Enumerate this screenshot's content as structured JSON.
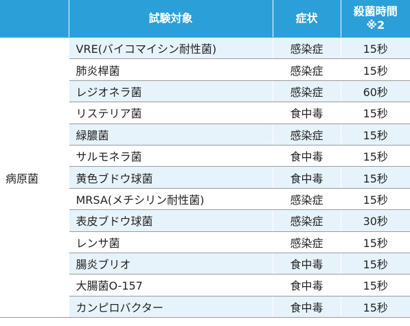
{
  "header": {
    "category": "",
    "target": "試験対象",
    "symptom": "症状",
    "time_line1": "殺菌時間",
    "time_line2": "※2"
  },
  "category_label": "病原菌",
  "rows": [
    {
      "name": "VRE(バイコマイシン耐性菌)",
      "symptom": "感染症",
      "time": "15秒"
    },
    {
      "name": "肺炎桿菌",
      "symptom": "感染症",
      "time": "15秒"
    },
    {
      "name": "レジオネラ菌",
      "symptom": "感染症",
      "time": "60秒"
    },
    {
      "name": "リステリア菌",
      "symptom": "食中毒",
      "time": "15秒"
    },
    {
      "name": "緑膿菌",
      "symptom": "感染症",
      "time": "15秒"
    },
    {
      "name": "サルモネラ菌",
      "symptom": "食中毒",
      "time": "15秒"
    },
    {
      "name": "黄色ブドウ球菌",
      "symptom": "食中毒",
      "time": "15秒"
    },
    {
      "name": "MRSA(メチシリン耐性菌)",
      "symptom": "感染症",
      "time": "15秒"
    },
    {
      "name": "表皮ブドウ球菌",
      "symptom": "感染症",
      "time": "30秒"
    },
    {
      "name": "レンサ菌",
      "symptom": "感染症",
      "time": "15秒"
    },
    {
      "name": "腸炎ブリオ",
      "symptom": "食中毒",
      "time": "15秒"
    },
    {
      "name": "大腸菌O-157",
      "symptom": "食中毒",
      "time": "15秒"
    },
    {
      "name": "カンピロバクター",
      "symptom": "食中毒",
      "time": "15秒"
    }
  ],
  "colors": {
    "header_bg": "#2b9fd8",
    "row_alt_bg": "#e7f3fb",
    "border": "#9a9a9a"
  }
}
